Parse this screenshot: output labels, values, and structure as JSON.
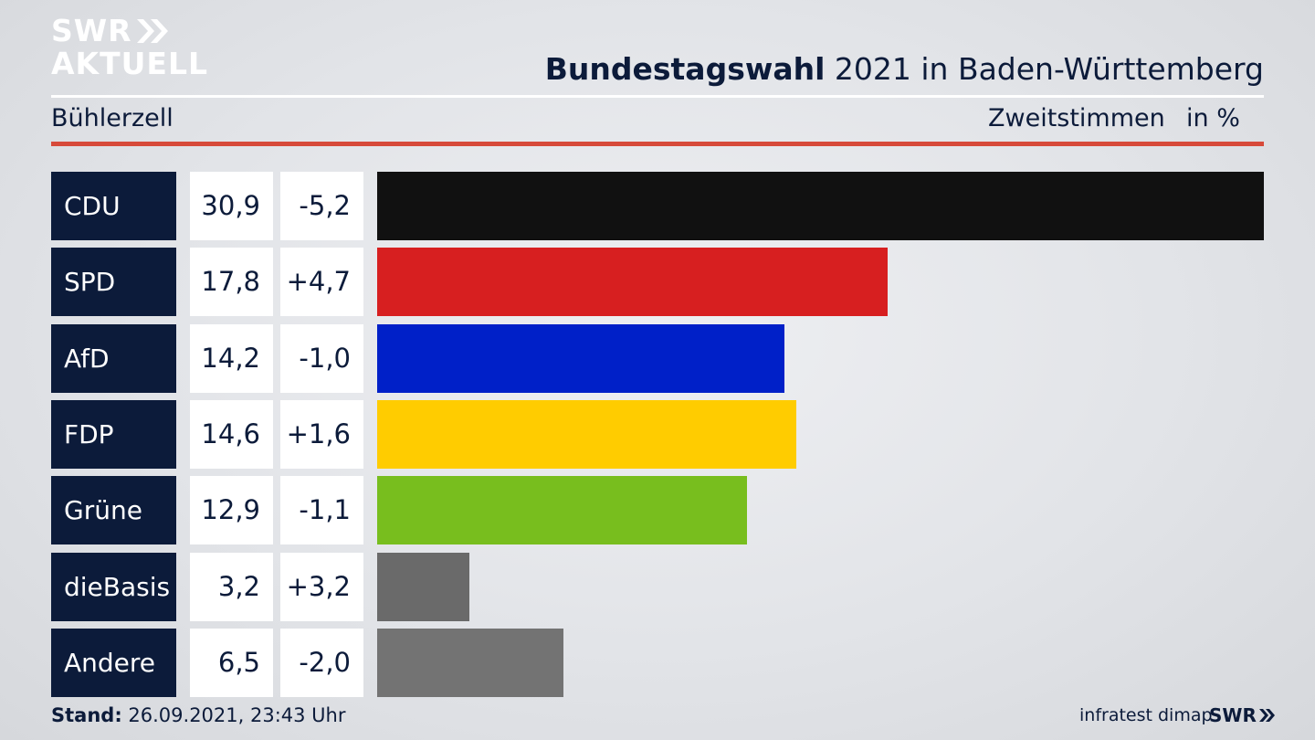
{
  "header": {
    "logo_line1": "SWR",
    "logo_line2": "AKTUELL",
    "title_bold": "Bundestagswahl",
    "title_rest": " 2021 in Baden-Württemberg",
    "region": "Bühlerzell",
    "metric": "Zweitstimmen",
    "unit": "in %"
  },
  "chart_data": {
    "type": "bar",
    "orientation": "horizontal",
    "categories": [
      "CDU",
      "SPD",
      "AfD",
      "FDP",
      "Grüne",
      "dieBasis",
      "Andere"
    ],
    "values": [
      30.9,
      17.8,
      14.2,
      14.6,
      12.9,
      3.2,
      6.5
    ],
    "value_labels": [
      "30,9",
      "17,8",
      "14,2",
      "14,6",
      "12,9",
      "3,2",
      "6,5"
    ],
    "changes": [
      "-5,2",
      "+4,7",
      "-1,0",
      "+1,6",
      "-1,1",
      "+3,2",
      "-2,0"
    ],
    "colors": [
      "#111111",
      "#d71f20",
      "#0020c8",
      "#ffcc00",
      "#78be1e",
      "#6a6a6a",
      "#737373"
    ]
  },
  "footer": {
    "stand_label": "Stand:",
    "stand_value": " 26.09.2021, 23:43 Uhr",
    "source": "infratest dimap",
    "logo": "SWR"
  }
}
